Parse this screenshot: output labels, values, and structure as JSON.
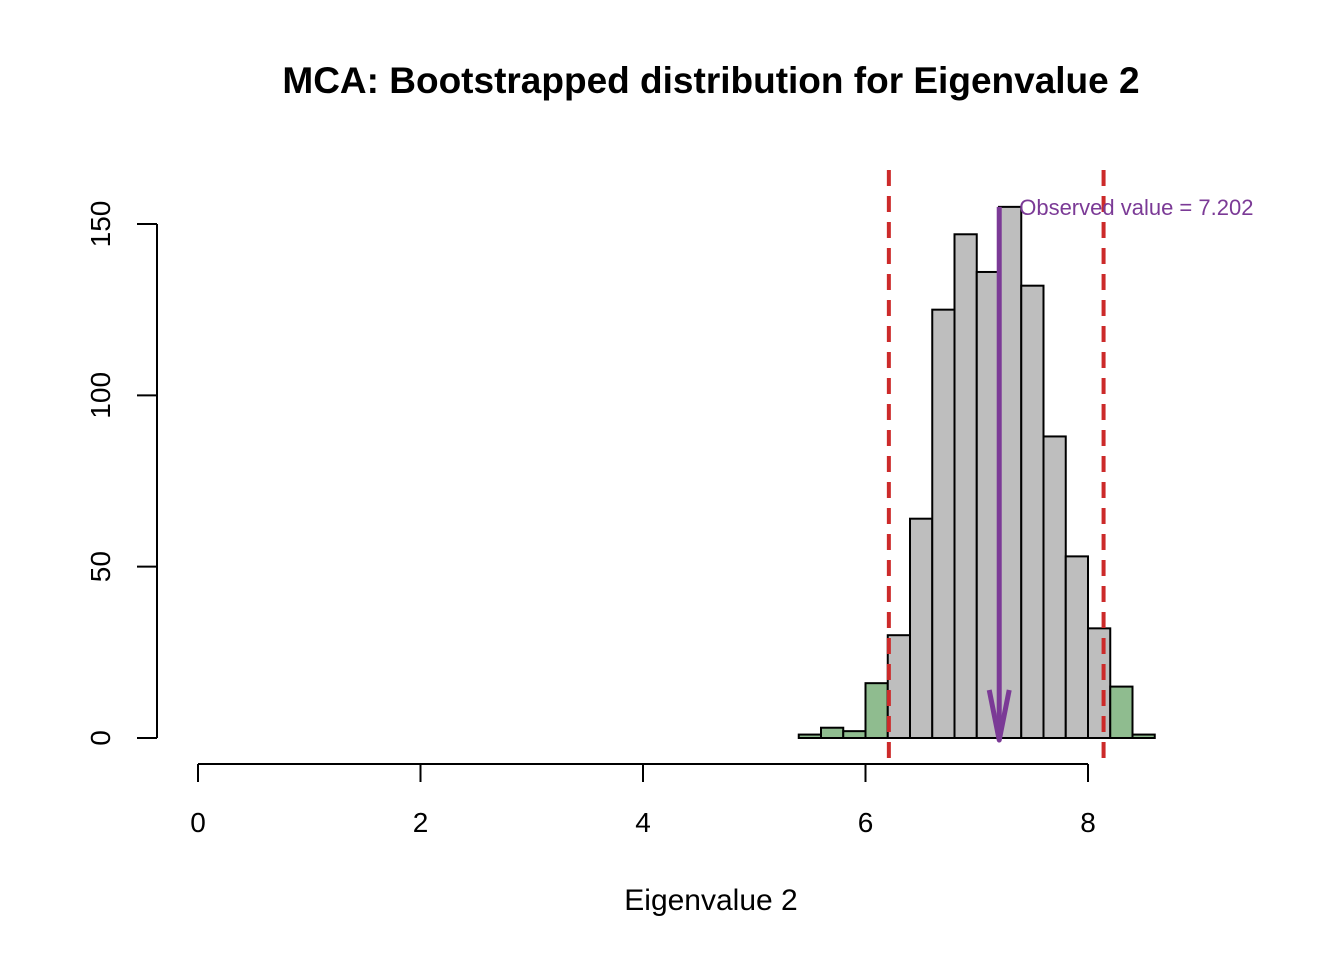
{
  "chart_data": {
    "type": "bar",
    "title": "MCA: Bootstrapped distribution for Eigenvalue 2",
    "xlabel": "Eigenvalue 2",
    "ylabel": "",
    "xlim": [
      0,
      8.6
    ],
    "ylim": [
      0,
      155
    ],
    "x_ticks": [
      0,
      2,
      4,
      6,
      8
    ],
    "y_ticks": [
      0,
      50,
      100,
      150
    ],
    "bin_width": 0.2,
    "bins": [
      {
        "start": 5.4,
        "end": 5.6,
        "count": 1,
        "tail": true
      },
      {
        "start": 5.6,
        "end": 5.8,
        "count": 3,
        "tail": true
      },
      {
        "start": 5.8,
        "end": 6.0,
        "count": 2,
        "tail": true
      },
      {
        "start": 6.0,
        "end": 6.2,
        "count": 16,
        "tail": true
      },
      {
        "start": 6.2,
        "end": 6.4,
        "count": 30,
        "tail": false
      },
      {
        "start": 6.4,
        "end": 6.6,
        "count": 64,
        "tail": false
      },
      {
        "start": 6.6,
        "end": 6.8,
        "count": 125,
        "tail": false
      },
      {
        "start": 6.8,
        "end": 7.0,
        "count": 147,
        "tail": false
      },
      {
        "start": 7.0,
        "end": 7.2,
        "count": 136,
        "tail": false
      },
      {
        "start": 7.2,
        "end": 7.4,
        "count": 155,
        "tail": false
      },
      {
        "start": 7.4,
        "end": 7.6,
        "count": 132,
        "tail": false
      },
      {
        "start": 7.6,
        "end": 7.8,
        "count": 88,
        "tail": false
      },
      {
        "start": 7.8,
        "end": 8.0,
        "count": 53,
        "tail": false
      },
      {
        "start": 8.0,
        "end": 8.2,
        "count": 32,
        "tail": false
      },
      {
        "start": 8.2,
        "end": 8.4,
        "count": 15,
        "tail": true
      },
      {
        "start": 8.4,
        "end": 8.6,
        "count": 1,
        "tail": true
      }
    ],
    "ci_lines": [
      6.21,
      8.14
    ],
    "observed": {
      "value": 7.202,
      "label": "Observed value = 7.202",
      "arrow_top": 155
    },
    "colors": {
      "bar": "#bebebe",
      "tail_bar": "#8fbc8f",
      "bar_border": "#000000",
      "ci_line": "#cc2a2a",
      "observed": "#7b3a96"
    },
    "grid": false,
    "legend": "none"
  }
}
